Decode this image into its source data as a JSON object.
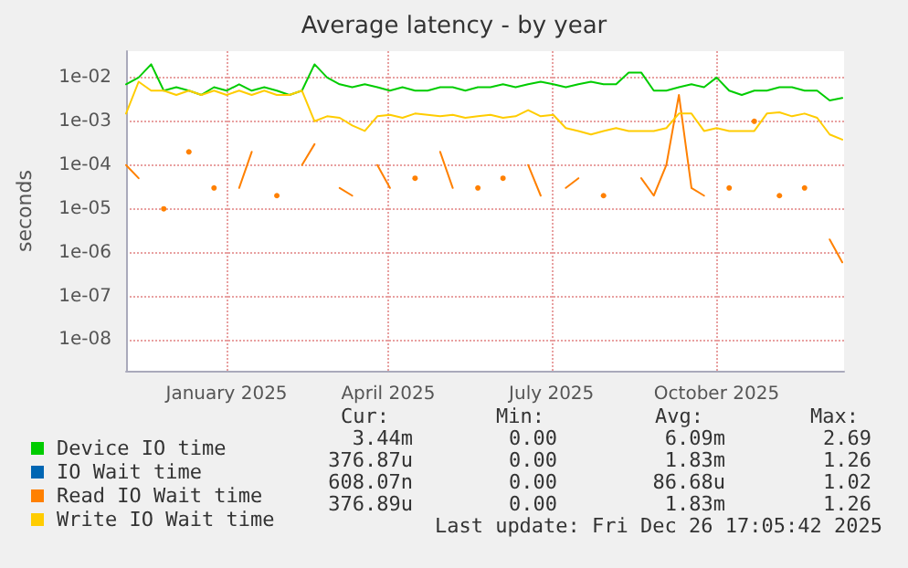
{
  "chart_data": {
    "type": "line",
    "title": "Average latency - by year",
    "ylabel": "seconds",
    "x": [
      "2024-11-21",
      "2024-11-28",
      "2024-12-05",
      "2024-12-12",
      "2024-12-19",
      "2024-12-26",
      "2025-01-02",
      "2025-01-09",
      "2025-01-16",
      "2025-01-23",
      "2025-01-30",
      "2025-02-06",
      "2025-02-13",
      "2025-02-20",
      "2025-02-27",
      "2025-03-06",
      "2025-03-13",
      "2025-03-20",
      "2025-03-27",
      "2025-04-03",
      "2025-04-10",
      "2025-04-17",
      "2025-04-24",
      "2025-05-01",
      "2025-05-08",
      "2025-05-15",
      "2025-05-22",
      "2025-05-29",
      "2025-06-05",
      "2025-06-12",
      "2025-06-19",
      "2025-06-26",
      "2025-07-03",
      "2025-07-10",
      "2025-07-17",
      "2025-07-24",
      "2025-07-31",
      "2025-08-07",
      "2025-08-14",
      "2025-08-21",
      "2025-08-28",
      "2025-09-04",
      "2025-09-11",
      "2025-09-18",
      "2025-09-25",
      "2025-10-02",
      "2025-10-09",
      "2025-10-16",
      "2025-10-23",
      "2025-10-30",
      "2025-11-06",
      "2025-11-13",
      "2025-11-20",
      "2025-11-27",
      "2025-12-04",
      "2025-12-11",
      "2025-12-18",
      "2025-12-25"
    ],
    "series": [
      {
        "name": "Device IO time",
        "color": "#00cc00",
        "values": [
          0.007,
          0.01,
          0.02,
          0.005,
          0.006,
          0.005,
          0.004,
          0.006,
          0.005,
          0.007,
          0.005,
          0.006,
          0.005,
          0.004,
          0.005,
          0.02,
          0.01,
          0.007,
          0.006,
          0.007,
          0.006,
          0.005,
          0.006,
          0.005,
          0.005,
          0.006,
          0.006,
          0.005,
          0.006,
          0.006,
          0.007,
          0.006,
          0.007,
          0.008,
          0.007,
          0.006,
          0.007,
          0.008,
          0.007,
          0.007,
          0.013,
          0.013,
          0.005,
          0.005,
          0.006,
          0.007,
          0.006,
          0.01,
          0.005,
          0.004,
          0.005,
          0.005,
          0.006,
          0.006,
          0.005,
          0.005,
          0.003,
          0.0034
        ]
      },
      {
        "name": "IO Wait time",
        "color": "#0066b3",
        "values": [
          null,
          null,
          null,
          null,
          null,
          null,
          null,
          null,
          null,
          null,
          null,
          null,
          null,
          null,
          null,
          null,
          null,
          null,
          null,
          null,
          null,
          null,
          null,
          null,
          null,
          null,
          null,
          null,
          null,
          null,
          null,
          null,
          null,
          null,
          null,
          null,
          null,
          null,
          null,
          null,
          null,
          null,
          null,
          null,
          null,
          null,
          null,
          null,
          null,
          null,
          null,
          null,
          null,
          null,
          null,
          null,
          null,
          null
        ]
      },
      {
        "name": "Read IO Wait time",
        "color": "#ff8000",
        "values": [
          0.0001,
          5e-05,
          null,
          1e-05,
          null,
          0.0002,
          null,
          3e-05,
          null,
          3e-05,
          0.0002,
          null,
          2e-05,
          null,
          0.0001,
          0.0003,
          null,
          3e-05,
          2e-05,
          null,
          0.0001,
          3e-05,
          null,
          5e-05,
          null,
          0.0002,
          3e-05,
          null,
          3e-05,
          null,
          5e-05,
          null,
          0.0001,
          2e-05,
          null,
          3e-05,
          5e-05,
          null,
          2e-05,
          null,
          null,
          5e-05,
          2e-05,
          0.0001,
          0.004,
          3e-05,
          2e-05,
          null,
          3e-05,
          null,
          0.001,
          null,
          2e-05,
          null,
          3e-05,
          null,
          2e-06,
          6e-07
        ]
      },
      {
        "name": "Write IO Wait time",
        "color": "#ffcc00",
        "values": [
          0.0015,
          0.008,
          0.005,
          0.005,
          0.004,
          0.005,
          0.004,
          0.005,
          0.004,
          0.005,
          0.004,
          0.005,
          0.004,
          0.004,
          0.005,
          0.001,
          0.0013,
          0.0012,
          0.0008,
          0.0006,
          0.0013,
          0.0014,
          0.0012,
          0.0015,
          0.0014,
          0.0013,
          0.0014,
          0.0012,
          0.0013,
          0.0014,
          0.0012,
          0.0013,
          0.0018,
          0.0013,
          0.0014,
          0.0007,
          0.0006,
          0.0005,
          0.0006,
          0.0007,
          0.0006,
          0.0006,
          0.0006,
          0.0007,
          0.0015,
          0.0015,
          0.0006,
          0.0007,
          0.0006,
          0.0006,
          0.0006,
          0.0015,
          0.0016,
          0.0013,
          0.0015,
          0.0012,
          0.0005,
          0.00038
        ]
      }
    ],
    "xlim": [
      "2024-11-21",
      "2025-12-26"
    ],
    "xticks": [
      {
        "value": "2025-01-16",
        "label": "January 2025"
      },
      {
        "value": "2025-04-16",
        "label": "April 2025"
      },
      {
        "value": "2025-07-16",
        "label": "July 2025"
      },
      {
        "value": "2025-10-16",
        "label": "October 2025"
      }
    ],
    "ylim": [
      2e-09,
      0.04
    ],
    "yticks": [
      {
        "value": 1e-08,
        "label": "1e-08"
      },
      {
        "value": 1e-07,
        "label": "1e-07"
      },
      {
        "value": 1e-06,
        "label": "1e-06"
      },
      {
        "value": 1e-05,
        "label": "1e-05"
      },
      {
        "value": 0.0001,
        "label": "1e-04"
      },
      {
        "value": 0.001,
        "label": "1e-03"
      },
      {
        "value": 0.01,
        "label": "1e-02"
      }
    ],
    "log": "y",
    "grid": true,
    "legend": "bottom left",
    "marker": "none",
    "line_style": "solid",
    "annotations": [
      "Cur:",
      "Min:",
      "Avg:",
      "Max:",
      "3.44m",
      "0.00",
      "6.09m",
      "2.69",
      "376.87u",
      "0.00",
      "1.83m",
      "1.26",
      "608.07n",
      "0.00",
      "86.68u",
      "1.02",
      "376.89u",
      "0.00",
      "1.83m",
      "1.26",
      "Last update: Fri Dec 26 17:05:42 2025"
    ]
  }
}
